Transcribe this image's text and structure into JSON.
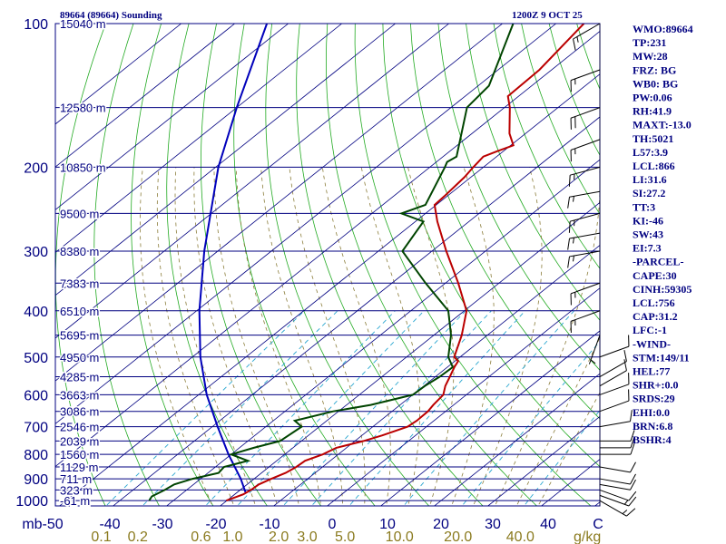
{
  "header": {
    "station_title": "89664 (89664) Sounding",
    "time_title": "1200Z  9 OCT 25"
  },
  "colors": {
    "frame": "#000080",
    "isobar": "#000080",
    "isotherm": "#000080",
    "dry_adiabat": "#22aa22",
    "moist_adiabat": "#8b7d3a",
    "mixing_ratio": "#2aa7d0",
    "temperature": "#bb0000",
    "dewpoint": "#004400",
    "parcel": "#0000bb",
    "wind_barb": "#000000",
    "mixing_label": "#8a7a1e"
  },
  "chart_data": {
    "type": "skew-t log-p",
    "pressure_axis": {
      "unit": "mb",
      "ticks": [
        100,
        200,
        300,
        400,
        500,
        600,
        700,
        800,
        900,
        1000
      ],
      "range": [
        1050,
        100
      ],
      "scale": "log"
    },
    "temperature_axis": {
      "unit": "C",
      "ticks": [
        -50,
        -40,
        -30,
        -20,
        -10,
        0,
        10,
        20,
        30,
        40
      ],
      "labels": [
        "mb-50",
        "-40",
        "-30",
        "-20",
        "-10",
        "0",
        "10",
        "20",
        "30",
        "40",
        "C"
      ]
    },
    "height_levels": [
      {
        "p": 100,
        "label": "15040 m"
      },
      {
        "p": 150,
        "label": "12580 m"
      },
      {
        "p": 200,
        "label": "10850 m"
      },
      {
        "p": 250,
        "label": "9500 m"
      },
      {
        "p": 300,
        "label": "8380 m"
      },
      {
        "p": 350,
        "label": "7383 m"
      },
      {
        "p": 400,
        "label": "6510 m"
      },
      {
        "p": 450,
        "label": "5695 m"
      },
      {
        "p": 500,
        "label": "4950 m"
      },
      {
        "p": 550,
        "label": "4285 m"
      },
      {
        "p": 600,
        "label": "3663 m"
      },
      {
        "p": 650,
        "label": "3086 m"
      },
      {
        "p": 700,
        "label": "2546 m"
      },
      {
        "p": 750,
        "label": "2039 m"
      },
      {
        "p": 800,
        "label": "1560 m"
      },
      {
        "p": 850,
        "label": "1129 m"
      },
      {
        "p": 900,
        "label": "711 m"
      },
      {
        "p": 950,
        "label": "323 m"
      },
      {
        "p": 1000,
        "label": "-61 m"
      }
    ],
    "mixing_ratio_axis": {
      "unit": "g/kg",
      "values": [
        0.1,
        0.2,
        0.6,
        1.0,
        2.0,
        3.0,
        5.0,
        10.0,
        20.0,
        40.0
      ],
      "labels": [
        "0.1",
        "0.2",
        "0.6",
        "1.0",
        "2.0",
        "3.0",
        "5.0",
        "10.0",
        "20.0",
        "40.0"
      ]
    },
    "temperature_profile": [
      {
        "p": 1000,
        "t": -20.1
      },
      {
        "p": 970,
        "t": -18.4
      },
      {
        "p": 950,
        "t": -18.0
      },
      {
        "p": 925,
        "t": -17.8
      },
      {
        "p": 900,
        "t": -16.8
      },
      {
        "p": 875,
        "t": -15.5
      },
      {
        "p": 850,
        "t": -14.9
      },
      {
        "p": 825,
        "t": -14.7
      },
      {
        "p": 800,
        "t": -12.9
      },
      {
        "p": 775,
        "t": -11.9
      },
      {
        "p": 750,
        "t": -8.4
      },
      {
        "p": 730,
        "t": -6.2
      },
      {
        "p": 700,
        "t": -3.5
      },
      {
        "p": 680,
        "t": -3.2
      },
      {
        "p": 650,
        "t": -3.3
      },
      {
        "p": 630,
        "t": -3.8
      },
      {
        "p": 600,
        "t": -4.3
      },
      {
        "p": 575,
        "t": -6.0
      },
      {
        "p": 550,
        "t": -7.3
      },
      {
        "p": 525,
        "t": -8.7
      },
      {
        "p": 510,
        "t": -9.4
      },
      {
        "p": 500,
        "t": -11.1
      },
      {
        "p": 450,
        "t": -14.8
      },
      {
        "p": 400,
        "t": -19.6
      },
      {
        "p": 350,
        "t": -27.6
      },
      {
        "p": 300,
        "t": -37.3
      },
      {
        "p": 260,
        "t": -45.9
      },
      {
        "p": 240,
        "t": -50.3
      },
      {
        "p": 230,
        "t": -50.5
      },
      {
        "p": 210,
        "t": -51.2
      },
      {
        "p": 200,
        "t": -51.9
      },
      {
        "p": 190,
        "t": -52.5
      },
      {
        "p": 185,
        "t": -51.1
      },
      {
        "p": 180,
        "t": -49.5
      },
      {
        "p": 170,
        "t": -53.0
      },
      {
        "p": 150,
        "t": -59.0
      },
      {
        "p": 142,
        "t": -62.0
      },
      {
        "p": 125,
        "t": -62.3
      },
      {
        "p": 100,
        "t": -64.8
      }
    ],
    "dewpoint_profile": [
      {
        "p": 1000,
        "t": -34.5
      },
      {
        "p": 980,
        "t": -35.0
      },
      {
        "p": 950,
        "t": -34.1
      },
      {
        "p": 925,
        "t": -33.6
      },
      {
        "p": 900,
        "t": -31.5
      },
      {
        "p": 875,
        "t": -28.0
      },
      {
        "p": 850,
        "t": -28.4
      },
      {
        "p": 825,
        "t": -25.4
      },
      {
        "p": 800,
        "t": -30.0
      },
      {
        "p": 775,
        "t": -27.3
      },
      {
        "p": 750,
        "t": -24.0
      },
      {
        "p": 700,
        "t": -23.3
      },
      {
        "p": 680,
        "t": -26.0
      },
      {
        "p": 650,
        "t": -21.0
      },
      {
        "p": 630,
        "t": -15.5
      },
      {
        "p": 600,
        "t": -10.0
      },
      {
        "p": 575,
        "t": -9.8
      },
      {
        "p": 550,
        "t": -9.2
      },
      {
        "p": 525,
        "t": -9.0
      },
      {
        "p": 500,
        "t": -12.2
      },
      {
        "p": 450,
        "t": -16.8
      },
      {
        "p": 400,
        "t": -23.0
      },
      {
        "p": 350,
        "t": -33.7
      },
      {
        "p": 300,
        "t": -45.5
      },
      {
        "p": 260,
        "t": -48.5
      },
      {
        "p": 250,
        "t": -54.5
      },
      {
        "p": 240,
        "t": -52.0
      },
      {
        "p": 200,
        "t": -57.2
      },
      {
        "p": 195,
        "t": -58.0
      },
      {
        "p": 190,
        "t": -57.5
      },
      {
        "p": 150,
        "t": -67.0
      },
      {
        "p": 135,
        "t": -68.0
      },
      {
        "p": 100,
        "t": -78.0
      }
    ],
    "parcel_profile": [
      {
        "p": 960,
        "t": -18.5
      },
      {
        "p": 900,
        "t": -22.5
      },
      {
        "p": 800,
        "t": -30.5
      },
      {
        "p": 700,
        "t": -39.0
      },
      {
        "p": 600,
        "t": -48.5
      },
      {
        "p": 500,
        "t": -58.5
      },
      {
        "p": 400,
        "t": -69.5
      },
      {
        "p": 300,
        "t": -82.5
      },
      {
        "p": 200,
        "t": -99.5
      },
      {
        "p": 150,
        "t": -110.0
      },
      {
        "p": 100,
        "t": -124.0
      }
    ],
    "wind_profile": [
      {
        "p": 1000,
        "dir": 120,
        "spd": 15
      },
      {
        "p": 975,
        "dir": 110,
        "spd": 15
      },
      {
        "p": 950,
        "dir": 110,
        "spd": 10
      },
      {
        "p": 925,
        "dir": 100,
        "spd": 10
      },
      {
        "p": 900,
        "dir": 100,
        "spd": 10
      },
      {
        "p": 850,
        "dir": 100,
        "spd": 10
      },
      {
        "p": 800,
        "dir": 90,
        "spd": 10
      },
      {
        "p": 775,
        "dir": 90,
        "spd": 10
      },
      {
        "p": 750,
        "dir": 90,
        "spd": 10
      },
      {
        "p": 700,
        "dir": 80,
        "spd": 10
      },
      {
        "p": 650,
        "dir": 70,
        "spd": 10
      },
      {
        "p": 600,
        "dir": 70,
        "spd": 10
      },
      {
        "p": 575,
        "dir": 60,
        "spd": 10
      },
      {
        "p": 550,
        "dir": 60,
        "spd": 10
      },
      {
        "p": 500,
        "dir": 70,
        "spd": 10
      },
      {
        "p": 450,
        "dir": 200,
        "spd": 5
      },
      {
        "p": 400,
        "dir": 250,
        "spd": 15
      },
      {
        "p": 350,
        "dir": 250,
        "spd": 15
      },
      {
        "p": 300,
        "dir": 260,
        "spd": 15
      },
      {
        "p": 275,
        "dir": 260,
        "spd": 15
      },
      {
        "p": 250,
        "dir": 255,
        "spd": 15
      },
      {
        "p": 225,
        "dir": 260,
        "spd": 15
      },
      {
        "p": 200,
        "dir": 255,
        "spd": 15
      },
      {
        "p": 175,
        "dir": 250,
        "spd": 15
      },
      {
        "p": 150,
        "dir": 250,
        "spd": 20
      },
      {
        "p": 125,
        "dir": 250,
        "spd": 15
      },
      {
        "p": 100,
        "dir": 240,
        "spd": 15
      }
    ],
    "indices": [
      "WMO:89664",
      "TP:231",
      "MW:28",
      "FRZ: BG",
      "WB0: BG",
      "PW:0.06",
      "RH:41.9",
      "MAXT:-13.0",
      "TH:5021",
      "L57:3.9",
      "LCL:866",
      "LI:31.6",
      "SI:27.2",
      "TT:3",
      "KI:-46",
      "SW:43",
      "EI:7.3",
      "-PARCEL-",
      "CAPE:30",
      "CINH:59305",
      "LCL:756",
      "CAP:31.2",
      "LFC:-1",
      "-WIND-",
      "STM:149/11",
      "HEL:77",
      "SHR+:0.0",
      "SRDS:29",
      "EHI:0.0",
      "BRN:6.8",
      "BSHR:4"
    ]
  }
}
